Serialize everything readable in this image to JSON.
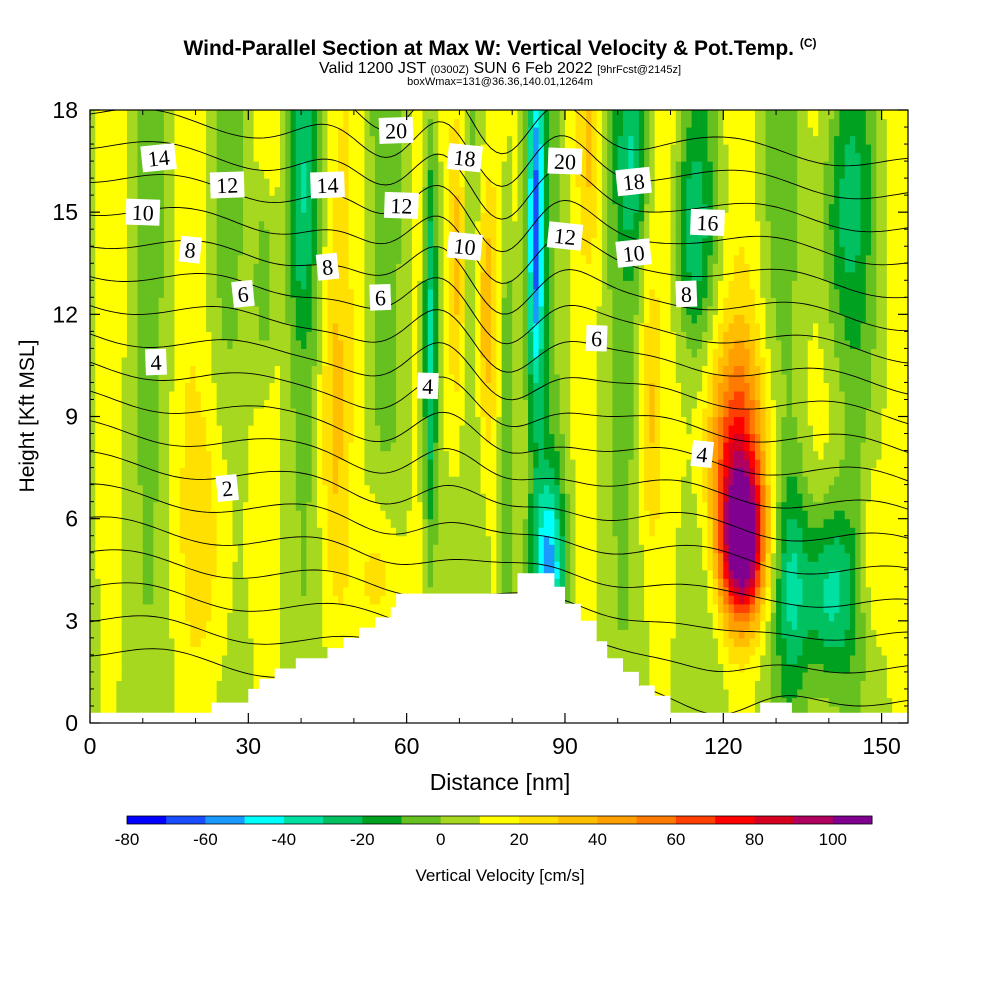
{
  "title": {
    "main": "Wind-Parallel Section at Max W: Vertical Velocity & Pot.Temp.",
    "copyright": "(C)",
    "valid_prefix": "Valid 1200 JST",
    "valid_utc": "(0300Z)",
    "valid_date": "SUN 6 Feb 2022",
    "forecast": "[9hrFcst@2145z]",
    "box": "boxWmax=131@36.36,140.01,1264m"
  },
  "chart_data": {
    "type": "heatmap",
    "xlabel": "Distance [nm]",
    "ylabel": "Height [Kft MSL]",
    "xlim": [
      0,
      155
    ],
    "ylim": [
      0,
      18
    ],
    "xticks": [
      0,
      30,
      60,
      90,
      120,
      150
    ],
    "yticks": [
      0,
      3,
      6,
      9,
      12,
      15,
      18
    ],
    "terrain": [
      [
        0,
        0.3
      ],
      [
        20,
        0.3
      ],
      [
        23,
        0.6
      ],
      [
        29,
        0.6
      ],
      [
        30,
        1.0
      ],
      [
        32,
        1.3
      ],
      [
        35,
        1.6
      ],
      [
        39,
        1.9
      ],
      [
        45,
        2.2
      ],
      [
        48,
        2.5
      ],
      [
        51,
        2.8
      ],
      [
        54,
        3.1
      ],
      [
        57,
        3.4
      ],
      [
        58,
        3.8
      ],
      [
        80,
        3.8
      ],
      [
        81,
        4.4
      ],
      [
        87,
        4.4
      ],
      [
        88,
        4.0
      ],
      [
        90,
        3.5
      ],
      [
        93,
        3.0
      ],
      [
        96,
        2.4
      ],
      [
        98,
        1.9
      ],
      [
        101,
        1.5
      ],
      [
        104,
        1.1
      ],
      [
        107,
        0.8
      ],
      [
        110,
        0.3
      ],
      [
        126,
        0.3
      ],
      [
        127,
        0.6
      ],
      [
        132,
        0.6
      ],
      [
        133,
        0.3
      ],
      [
        155,
        0.3
      ]
    ],
    "w_features": [
      {
        "x": 123,
        "y": 5.3,
        "w": 100
      },
      {
        "x": 85,
        "y": 14.5,
        "w": -60
      },
      {
        "x": 64,
        "y": 12,
        "w": -45
      },
      {
        "x": 68,
        "y": 15,
        "w": 35
      },
      {
        "x": 75,
        "y": 12,
        "w": 30
      },
      {
        "x": 23,
        "y": 5,
        "w": 10
      },
      {
        "x": 48,
        "y": 10,
        "w": 25
      },
      {
        "x": 140,
        "y": 3.8,
        "w": -30
      }
    ],
    "theta_contours": [
      {
        "label": "2",
        "label_x": 26,
        "label_y": 6.9
      },
      {
        "label": "4",
        "label_x": 12.5,
        "label_y": 10.6
      },
      {
        "label": "4",
        "label_x": 64,
        "label_y": 9.9
      },
      {
        "label": "4",
        "label_x": 116,
        "label_y": 7.9
      },
      {
        "label": "6",
        "label_x": 29,
        "label_y": 12.6
      },
      {
        "label": "6",
        "label_x": 55,
        "label_y": 12.5
      },
      {
        "label": "6",
        "label_x": 96,
        "label_y": 11.3
      },
      {
        "label": "8",
        "label_x": 19,
        "label_y": 13.9
      },
      {
        "label": "8",
        "label_x": 45,
        "label_y": 13.4
      },
      {
        "label": "8",
        "label_x": 113,
        "label_y": 12.6
      },
      {
        "label": "10",
        "label_x": 10,
        "label_y": 15
      },
      {
        "label": "10",
        "label_x": 71,
        "label_y": 14
      },
      {
        "label": "10",
        "label_x": 103,
        "label_y": 13.8
      },
      {
        "label": "12",
        "label_x": 26,
        "label_y": 15.8
      },
      {
        "label": "12",
        "label_x": 59,
        "label_y": 15.2
      },
      {
        "label": "12",
        "label_x": 90,
        "label_y": 14.3
      },
      {
        "label": "14",
        "label_x": 13,
        "label_y": 16.6
      },
      {
        "label": "14",
        "label_x": 45,
        "label_y": 15.8
      },
      {
        "label": "16",
        "label_x": 117,
        "label_y": 14.7
      },
      {
        "label": "18",
        "label_x": 71,
        "label_y": 16.6
      },
      {
        "label": "18",
        "label_x": 103,
        "label_y": 15.9
      },
      {
        "label": "20",
        "label_x": 58,
        "label_y": 17.4
      },
      {
        "label": "20",
        "label_x": 90,
        "label_y": 16.5
      }
    ],
    "colorbar": {
      "label": "Vertical Velocity [cm/s]",
      "ticks": [
        "-80",
        "-60",
        "-40",
        "-20",
        "0",
        "20",
        "40",
        "60",
        "80",
        "100"
      ],
      "colors": [
        "#0000ff",
        "#1a4dff",
        "#1a99ff",
        "#00ffff",
        "#00e0a0",
        "#00c060",
        "#00a020",
        "#66c020",
        "#a6d820",
        "#ffff00",
        "#ffe000",
        "#ffbf00",
        "#ff9f00",
        "#ff7a00",
        "#ff4000",
        "#ff0000",
        "#d80020",
        "#b00060",
        "#800090"
      ]
    }
  }
}
